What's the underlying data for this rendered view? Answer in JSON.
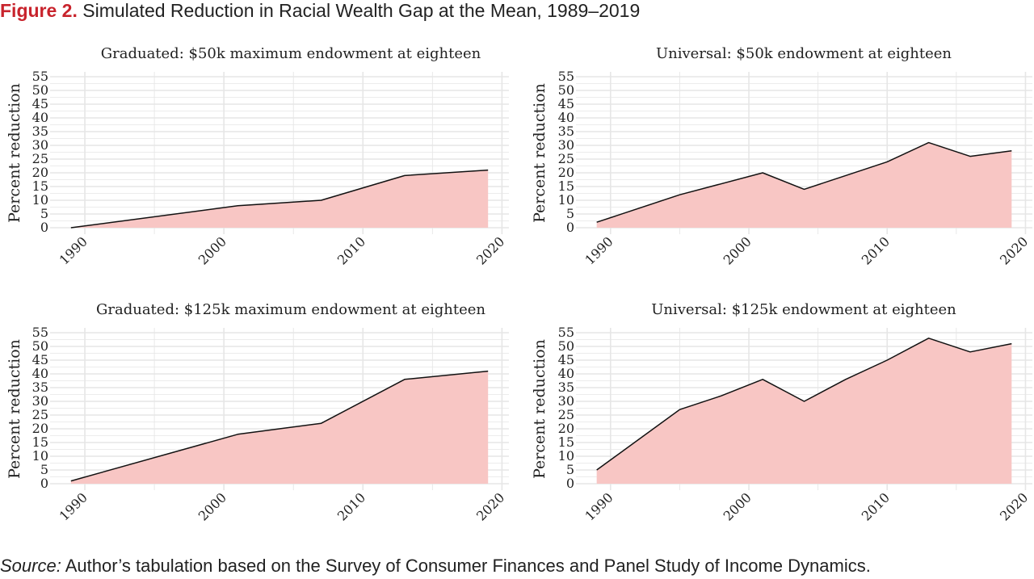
{
  "figure": {
    "label": "Figure 2.",
    "caption": "Simulated Reduction in Racial Wealth Gap at the Mean, 1989–2019"
  },
  "source": {
    "label": "Source:",
    "text": "Author’s tabulation based on the Survey of Consumer Finances and Panel Study of Income Dynamics."
  },
  "colors": {
    "fill": "#f8c6c4",
    "line": "#111111",
    "grid": "#e6e6e6",
    "title_accent": "#c8232c"
  },
  "chart_data": [
    {
      "type": "area",
      "title": "Graduated: $50k maximum endowment at eighteen",
      "xlabel": "",
      "ylabel": "Percent reduction",
      "xlim": [
        1987.5,
        2020.5
      ],
      "ylim": [
        0,
        55
      ],
      "x_ticks": [
        1990,
        2000,
        2010,
        2020
      ],
      "y_ticks": [
        0,
        5,
        10,
        15,
        20,
        25,
        30,
        35,
        40,
        45,
        50,
        55
      ],
      "grid": true,
      "x": [
        1989,
        2001,
        2007,
        2013,
        2019
      ],
      "y": [
        0,
        8,
        10,
        19,
        21
      ]
    },
    {
      "type": "area",
      "title": "Universal: $50k endowment at eighteen",
      "xlabel": "",
      "ylabel": "Percent reduction",
      "xlim": [
        1987.5,
        2020.5
      ],
      "ylim": [
        0,
        55
      ],
      "x_ticks": [
        1990,
        2000,
        2010,
        2020
      ],
      "y_ticks": [
        0,
        5,
        10,
        15,
        20,
        25,
        30,
        35,
        40,
        45,
        50,
        55
      ],
      "grid": true,
      "x": [
        1989,
        1995,
        2001,
        2004,
        2007,
        2010,
        2013,
        2016,
        2019
      ],
      "y": [
        2,
        12,
        20,
        14,
        19,
        24,
        31,
        26,
        28
      ]
    },
    {
      "type": "area",
      "title": "Graduated: $125k maximum endowment at eighteen",
      "xlabel": "",
      "ylabel": "Percent reduction",
      "xlim": [
        1987.5,
        2020.5
      ],
      "ylim": [
        0,
        55
      ],
      "x_ticks": [
        1990,
        2000,
        2010,
        2020
      ],
      "y_ticks": [
        0,
        5,
        10,
        15,
        20,
        25,
        30,
        35,
        40,
        45,
        50,
        55
      ],
      "grid": true,
      "x": [
        1989,
        2001,
        2007,
        2013,
        2019
      ],
      "y": [
        1,
        18,
        22,
        38,
        41
      ]
    },
    {
      "type": "area",
      "title": "Universal: $125k endowment at eighteen",
      "xlabel": "",
      "ylabel": "Percent reduction",
      "xlim": [
        1987.5,
        2020.5
      ],
      "ylim": [
        0,
        55
      ],
      "x_ticks": [
        1990,
        2000,
        2010,
        2020
      ],
      "y_ticks": [
        0,
        5,
        10,
        15,
        20,
        25,
        30,
        35,
        40,
        45,
        50,
        55
      ],
      "grid": true,
      "x": [
        1989,
        1995,
        1998,
        2001,
        2004,
        2007,
        2010,
        2013,
        2016,
        2019
      ],
      "y": [
        5,
        27,
        32,
        38,
        30,
        38,
        45,
        53,
        48,
        51
      ]
    }
  ]
}
